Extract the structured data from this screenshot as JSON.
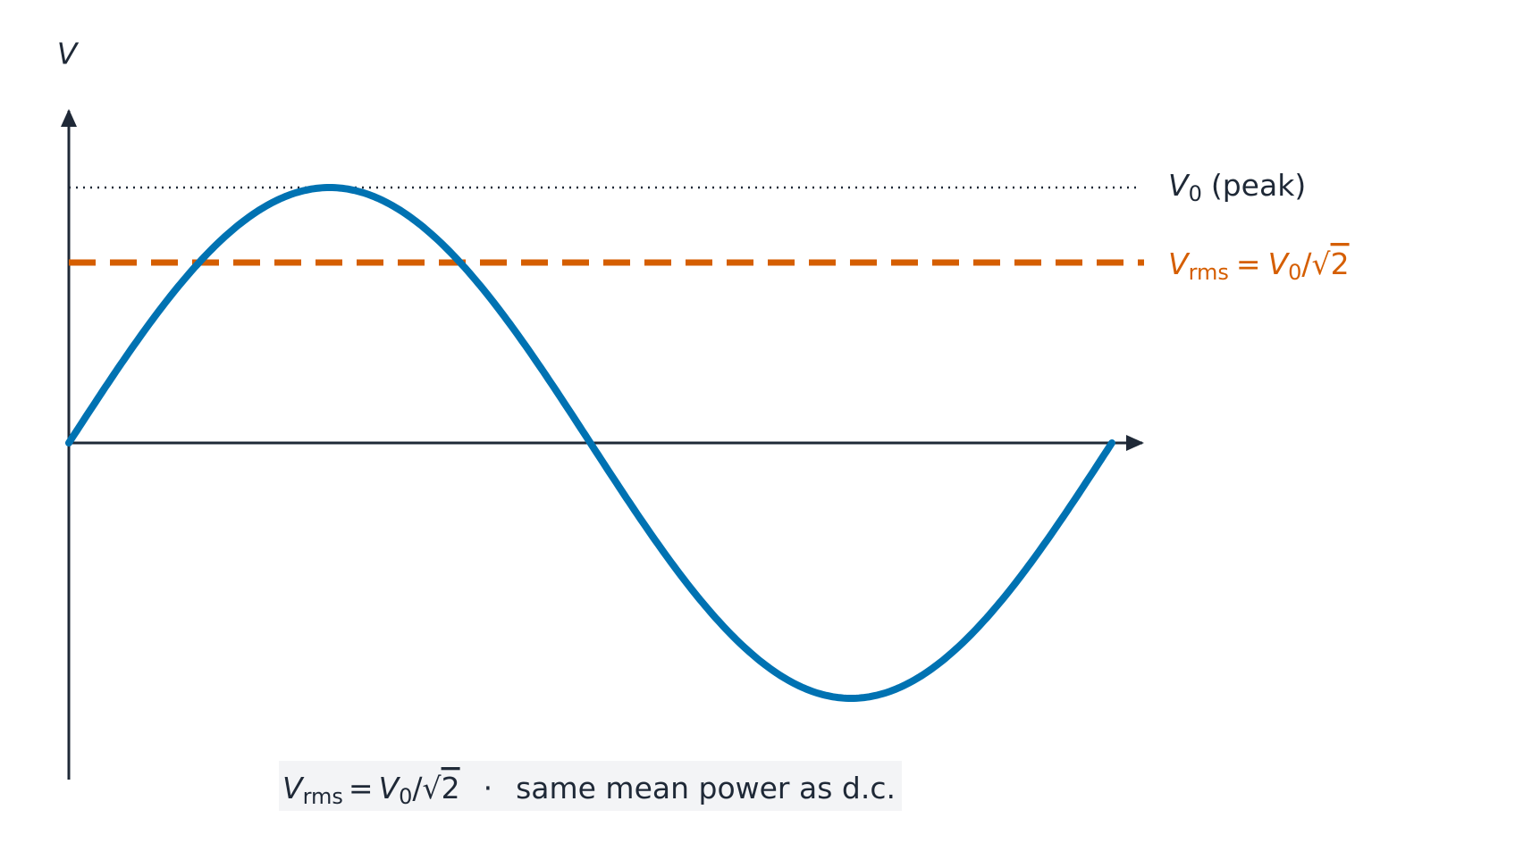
{
  "axis_label": "V",
  "peak_label": {
    "symbol": "V",
    "subscript": "0",
    "text": "(peak)"
  },
  "rms_label": {
    "symbol": "V",
    "subscript": "rms",
    "equals": "=",
    "rhs_symbol": "V",
    "rhs_subscript": "0",
    "slash": "/",
    "root": "√",
    "radicand": "2"
  },
  "caption": {
    "symbol": "V",
    "subscript": "rms",
    "equals": "=",
    "rhs_symbol": "V",
    "rhs_subscript": "0",
    "slash": "/",
    "root": "√",
    "radicand": "2",
    "separator": "·",
    "text": "same mean power as d.c."
  }
}
